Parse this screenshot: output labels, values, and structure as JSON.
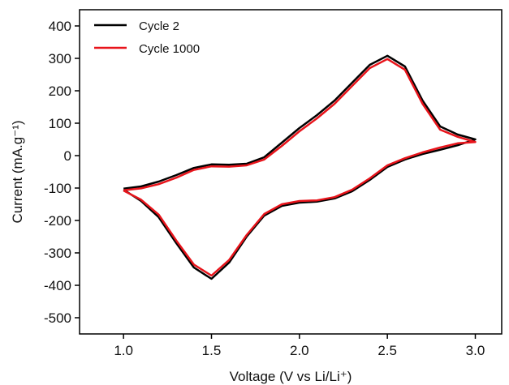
{
  "chart_data": {
    "type": "line",
    "xlabel": "Voltage (V vs Li/Li⁺)",
    "ylabel": "Current (mA.g⁻¹)",
    "xlim": [
      0.75,
      3.15
    ],
    "ylim": [
      -550,
      450
    ],
    "x_ticks": [
      1.0,
      1.5,
      2.0,
      2.5,
      3.0
    ],
    "x_tick_labels": [
      "1.0",
      "1.5",
      "2.0",
      "2.5",
      "3.0"
    ],
    "y_ticks": [
      400,
      300,
      200,
      100,
      0,
      -100,
      -200,
      -300,
      -400,
      -500
    ],
    "y_tick_labels": [
      "400",
      "300",
      "200",
      "100",
      "0",
      "-100",
      "-200",
      "-300",
      "-400",
      "-500"
    ],
    "grid": false,
    "legend_position": "top-left",
    "series": [
      {
        "name": "Cycle 2",
        "color": "#000000",
        "x": [
          1.0,
          1.1,
          1.2,
          1.3,
          1.4,
          1.5,
          1.6,
          1.7,
          1.8,
          1.9,
          2.0,
          2.1,
          2.2,
          2.3,
          2.4,
          2.5,
          2.6,
          2.7,
          2.8,
          2.9,
          3.0,
          2.9,
          2.8,
          2.7,
          2.6,
          2.5,
          2.4,
          2.3,
          2.2,
          2.1,
          2.0,
          1.9,
          1.8,
          1.7,
          1.6,
          1.5,
          1.4,
          1.3,
          1.2,
          1.1,
          1.0
        ],
        "y": [
          -102,
          -95,
          -80,
          -60,
          -38,
          -27,
          -28,
          -25,
          -5,
          40,
          85,
          125,
          170,
          225,
          280,
          308,
          275,
          170,
          90,
          65,
          50,
          32,
          18,
          5,
          -12,
          -35,
          -75,
          -110,
          -132,
          -142,
          -145,
          -155,
          -185,
          -250,
          -330,
          -380,
          -345,
          -270,
          -190,
          -140,
          -105
        ]
      },
      {
        "name": "Cycle 1000",
        "color": "#e8141b",
        "x": [
          1.0,
          1.1,
          1.2,
          1.3,
          1.4,
          1.5,
          1.6,
          1.7,
          1.8,
          1.9,
          2.0,
          2.1,
          2.2,
          2.3,
          2.4,
          2.5,
          2.6,
          2.7,
          2.8,
          2.9,
          3.0,
          2.9,
          2.8,
          2.7,
          2.6,
          2.5,
          2.4,
          2.3,
          2.2,
          2.1,
          2.0,
          1.9,
          1.8,
          1.7,
          1.6,
          1.5,
          1.4,
          1.3,
          1.2,
          1.1,
          1.0
        ],
        "y": [
          -107,
          -101,
          -88,
          -68,
          -44,
          -33,
          -34,
          -30,
          -12,
          30,
          75,
          115,
          160,
          215,
          270,
          298,
          265,
          160,
          80,
          58,
          42,
          38,
          25,
          10,
          -8,
          -30,
          -70,
          -105,
          -128,
          -138,
          -140,
          -150,
          -180,
          -245,
          -322,
          -370,
          -336,
          -262,
          -182,
          -136,
          -108
        ]
      }
    ]
  }
}
